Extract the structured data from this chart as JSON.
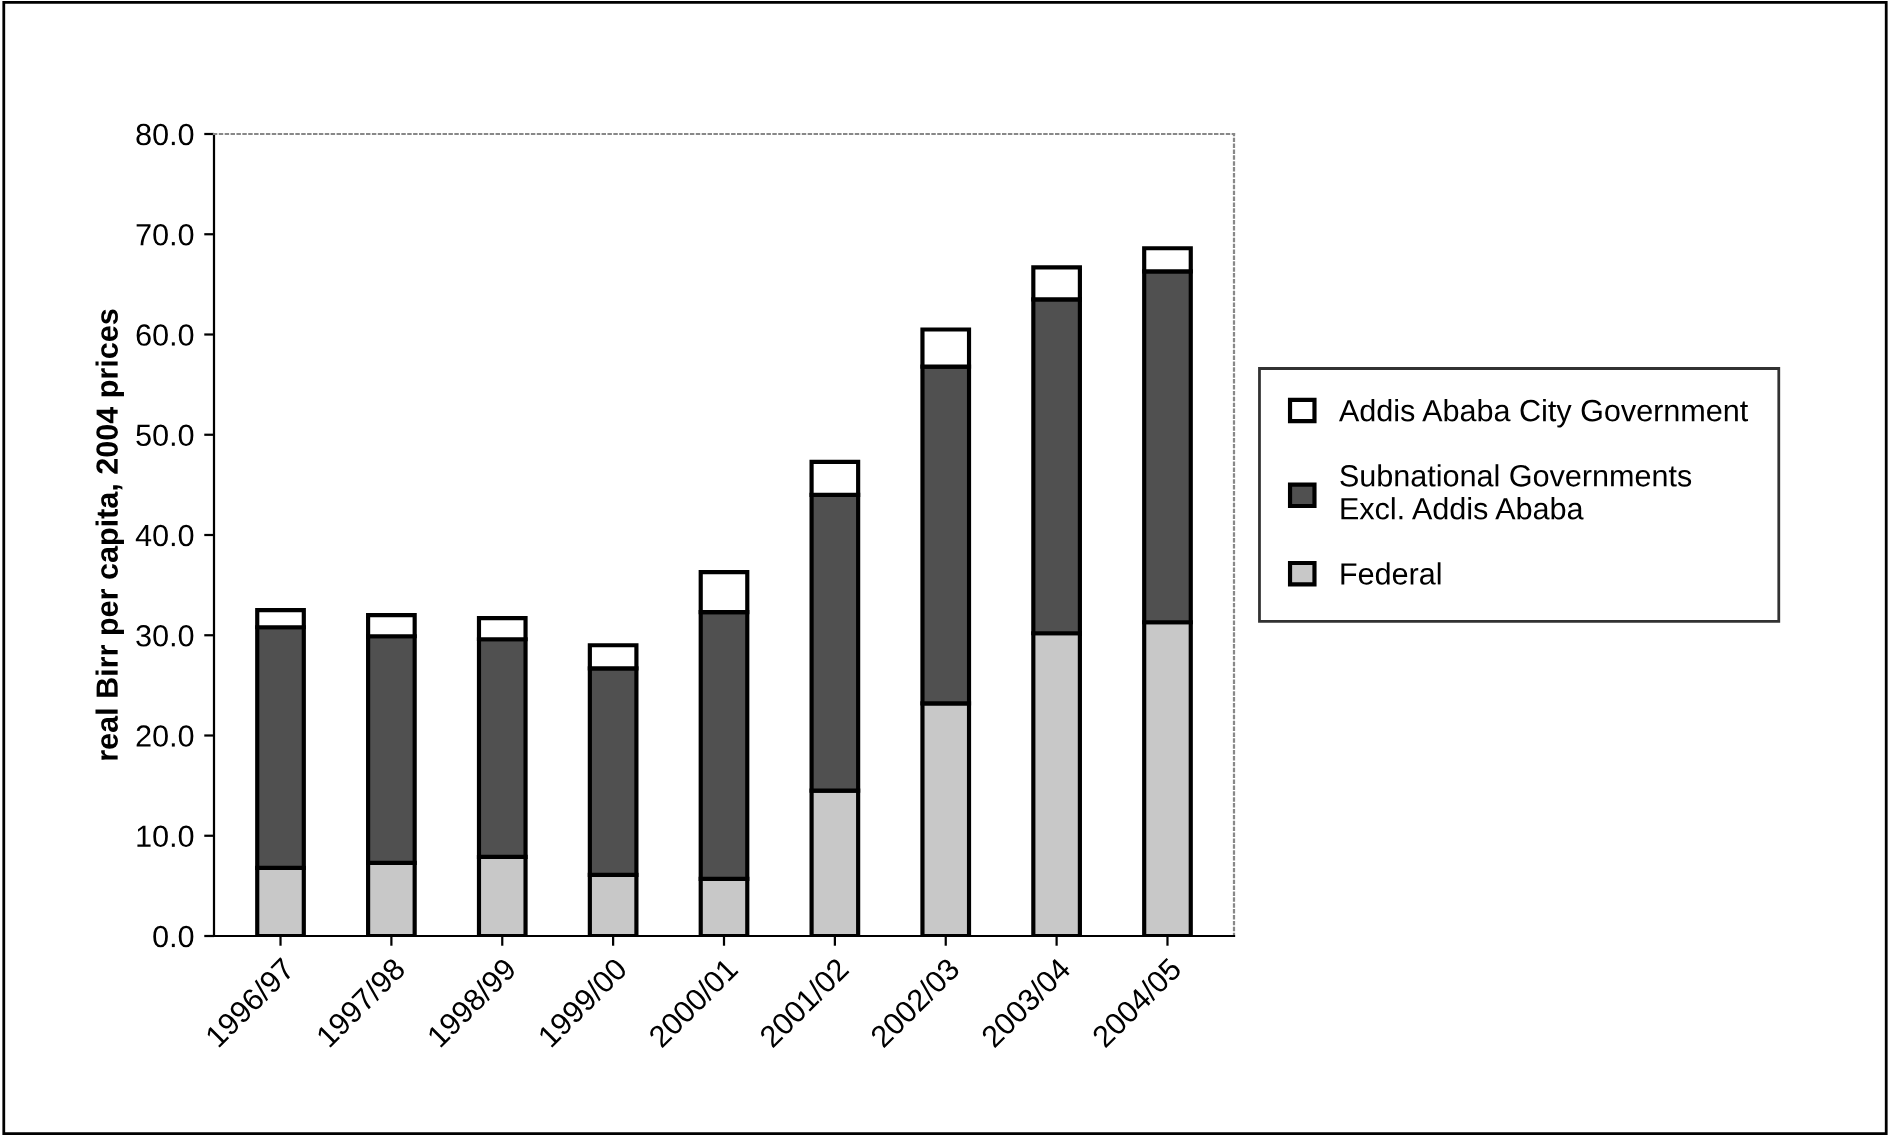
{
  "chart_data": {
    "type": "bar",
    "stacked": true,
    "ylabel": "real Birr per capita, 2004 prices",
    "categories": [
      "1996/97",
      "1997/98",
      "1998/99",
      "1999/00",
      "2000/01",
      "2001/02",
      "2002/03",
      "2003/04",
      "2004/05"
    ],
    "series": [
      {
        "name": "Federal",
        "color": "#c8c8c8",
        "values": [
          6.8,
          7.3,
          7.9,
          6.1,
          5.7,
          14.5,
          23.2,
          30.2,
          31.3
        ]
      },
      {
        "name": "Subnational Governments\nExcl. Addis Ababa",
        "color": "#505050",
        "values": [
          24.0,
          22.6,
          21.7,
          20.6,
          26.6,
          29.5,
          33.6,
          33.3,
          35.0
        ]
      },
      {
        "name": "Addis Ababa City Government",
        "color": "#ffffff",
        "values": [
          1.7,
          2.1,
          2.1,
          2.3,
          4.0,
          3.3,
          3.7,
          3.2,
          2.3
        ]
      }
    ],
    "ylim": [
      0,
      80
    ],
    "yticks": [
      {
        "value": 0,
        "label": "0.0"
      },
      {
        "value": 10,
        "label": "10.0"
      },
      {
        "value": 20,
        "label": "20.0"
      },
      {
        "value": 30,
        "label": "30.0"
      },
      {
        "value": 40,
        "label": "40.0"
      },
      {
        "value": 50,
        "label": "50.0"
      },
      {
        "value": 60,
        "label": "60.0"
      },
      {
        "value": 70,
        "label": "70.0"
      },
      {
        "value": 80,
        "label": "80.0"
      }
    ],
    "legend": "right",
    "grid": false
  }
}
